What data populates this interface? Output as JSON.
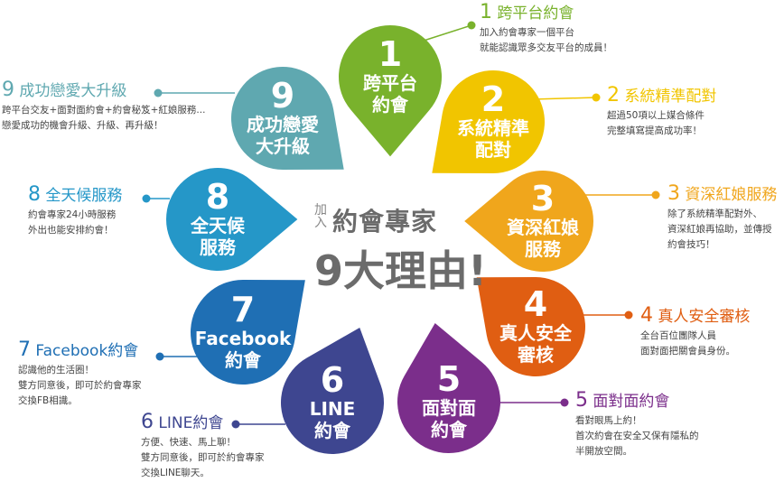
{
  "center": {
    "prefix": "加入",
    "main": "約會專家",
    "big": "9大理由!"
  },
  "petals": [
    {
      "num": "1",
      "lines": [
        "跨平台",
        "約會"
      ],
      "color": "#79b22c",
      "title": "跨平台約會",
      "desc": [
        "加入約會專家一個平台",
        "就能認識眾多交友平台的成員！"
      ]
    },
    {
      "num": "2",
      "lines": [
        "系統精準",
        "配對"
      ],
      "color": "#f1c500",
      "title": "系統精準配對",
      "desc": [
        "超過50項以上媒合條件",
        "完整填寫提高成功率！"
      ]
    },
    {
      "num": "3",
      "lines": [
        "資深紅娘",
        "服務"
      ],
      "color": "#f0a61c",
      "title": "資深紅娘服務",
      "desc": [
        "除了系統精準配對外、",
        "資深紅娘再協助，並傳授",
        "約會技巧！"
      ]
    },
    {
      "num": "4",
      "lines": [
        "真人安全",
        "審核"
      ],
      "color": "#e05e12",
      "title": "真人安全審核",
      "desc": [
        "全台百位團隊人員",
        "面對面把關會員身份。"
      ]
    },
    {
      "num": "5",
      "lines": [
        "面對面",
        "約會"
      ],
      "color": "#7b2e8b",
      "title": "面對面約會",
      "desc": [
        "看對眼馬上約！",
        "首次約會在安全又保有隱私的",
        "半開放空間。"
      ]
    },
    {
      "num": "6",
      "lines": [
        "LINE",
        "約會"
      ],
      "color": "#3e4690",
      "title": "LINE約會",
      "desc": [
        "方便、快速、馬上聊！",
        "雙方同意後，即可於約會專家",
        "交換LINE聊天。"
      ]
    },
    {
      "num": "7",
      "lines": [
        "Facebook",
        "約會"
      ],
      "color": "#1f6fb4",
      "title": "Facebook約會",
      "desc": [
        "認識他的生活圈！",
        "雙方同意後，即可於約會專家",
        "交換FB相識。"
      ]
    },
    {
      "num": "8",
      "lines": [
        "全天候",
        "服務"
      ],
      "color": "#2597c8",
      "title": "全天候服務",
      "desc": [
        "約會專家24小時服務",
        "外出也能安排約會！"
      ]
    },
    {
      "num": "9",
      "lines": [
        "成功戀愛",
        "大升級"
      ],
      "color": "#5fa8b0",
      "title": "成功戀愛大升級",
      "desc": [
        "跨平台交友+面對面約會+約會秘笈+紅娘服務...",
        "戀愛成功的機會升級、升級、再升級！"
      ]
    }
  ]
}
